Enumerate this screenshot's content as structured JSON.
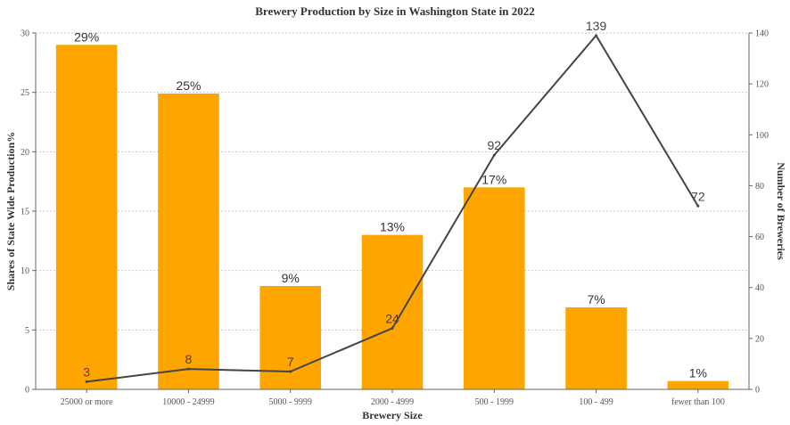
{
  "chart_data": {
    "type": "bar",
    "title": "Brewery Production by Size in Washington State in 2022",
    "xlabel": "Brewery Size",
    "ylabel": "Shares of State Wide Production%",
    "y2label": "Number of Breweries",
    "categories": [
      "25000 or more",
      "10000 - 24999",
      "5000 - 9999",
      "2000 - 4999",
      "500 - 1999",
      "100 - 499",
      "fewer than 100"
    ],
    "series": [
      {
        "type": "bar",
        "axis": "left",
        "values": [
          29,
          24.9,
          8.7,
          13,
          17,
          6.9,
          0.7
        ],
        "labels": [
          "29%",
          "25%",
          "9%",
          "13%",
          "17%",
          "7%",
          "1%"
        ],
        "color": "#FFA500"
      },
      {
        "type": "line",
        "axis": "right",
        "values": [
          3,
          8,
          7,
          24,
          92,
          139,
          72
        ],
        "labels": [
          "3",
          "8",
          "7",
          "24",
          "92",
          "139",
          "72"
        ],
        "color": "#444444"
      }
    ],
    "ylim": [
      0,
      30
    ],
    "yticks": [
      0,
      5,
      10,
      15,
      20,
      25,
      30
    ],
    "y2lim": [
      0,
      140
    ],
    "y2ticks": [
      0,
      20,
      40,
      60,
      80,
      100,
      120,
      140
    ],
    "grid": true
  }
}
